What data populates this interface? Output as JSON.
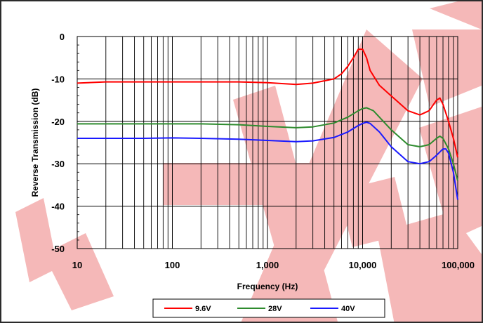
{
  "chart_data": {
    "type": "line",
    "title": "",
    "xlabel": "Frequency (Hz)",
    "ylabel": "Reverse Transmission (dB)",
    "xscale": "log",
    "xlim": [
      10,
      100000
    ],
    "ylim": [
      -50,
      0
    ],
    "x_ticks": [
      10,
      100,
      1000,
      10000,
      100000
    ],
    "x_tick_labels": [
      "10",
      "100",
      "1,000",
      "10,000",
      "100,000"
    ],
    "y_ticks": [
      0,
      -10,
      -20,
      -30,
      -40,
      -50
    ],
    "y_tick_labels": [
      "0",
      "-10",
      "-20",
      "-30",
      "-40",
      "-50"
    ],
    "grid": true,
    "legend_position": "bottom",
    "series": [
      {
        "name": "9.6V",
        "color": "#ff0000",
        "x": [
          10,
          20,
          50,
          100,
          200,
          500,
          1000,
          2000,
          3000,
          5000,
          6000,
          7000,
          8000,
          9000,
          10000,
          11000,
          12000,
          15000,
          20000,
          30000,
          40000,
          50000,
          60000,
          65000,
          70000,
          80000,
          90000,
          100000
        ],
        "values": [
          -11.0,
          -10.7,
          -10.7,
          -10.7,
          -10.7,
          -10.7,
          -10.9,
          -11.3,
          -11.0,
          -10.0,
          -8.8,
          -7.0,
          -5.0,
          -3.0,
          -3.0,
          -5.0,
          -8.0,
          -11.5,
          -14.0,
          -17.5,
          -18.5,
          -17.5,
          -15.0,
          -14.5,
          -16.0,
          -20.0,
          -24.0,
          -28.5
        ]
      },
      {
        "name": "28V",
        "color": "#2e8b2e",
        "x": [
          10,
          20,
          50,
          100,
          200,
          500,
          1000,
          2000,
          3000,
          5000,
          7000,
          9000,
          10000,
          11000,
          13000,
          15000,
          20000,
          30000,
          40000,
          50000,
          60000,
          65000,
          70000,
          80000,
          90000,
          100000
        ],
        "values": [
          -20.6,
          -20.6,
          -20.6,
          -20.6,
          -20.6,
          -20.8,
          -21.2,
          -21.5,
          -21.3,
          -20.4,
          -19.0,
          -17.5,
          -17.0,
          -16.8,
          -17.5,
          -19.0,
          -22.0,
          -25.5,
          -26.0,
          -25.5,
          -24.0,
          -23.5,
          -24.0,
          -26.5,
          -30.0,
          -34.0
        ]
      },
      {
        "name": "40V",
        "color": "#1a1aff",
        "x": [
          10,
          20,
          50,
          100,
          200,
          500,
          1000,
          2000,
          3000,
          5000,
          7000,
          9000,
          10000,
          11000,
          12000,
          15000,
          20000,
          30000,
          40000,
          50000,
          60000,
          70000,
          75000,
          80000,
          90000,
          100000
        ],
        "values": [
          -24.0,
          -24.0,
          -24.0,
          -23.9,
          -24.0,
          -24.2,
          -24.5,
          -24.8,
          -24.6,
          -23.8,
          -22.5,
          -21.0,
          -20.5,
          -20.2,
          -20.5,
          -22.5,
          -26.0,
          -29.5,
          -30.0,
          -29.5,
          -28.0,
          -26.5,
          -26.5,
          -27.5,
          -32.0,
          -38.5
        ]
      }
    ]
  }
}
